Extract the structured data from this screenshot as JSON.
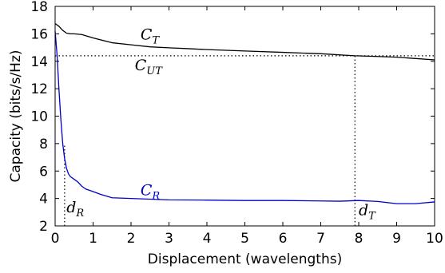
{
  "chart_data": {
    "type": "line",
    "xlabel": "Displacement (wavelengths)",
    "ylabel": "Capacity (bits/s/Hz)",
    "xlim": [
      0,
      10
    ],
    "ylim": [
      2,
      18
    ],
    "xticks": [
      "0",
      "1",
      "2",
      "3",
      "4",
      "5",
      "6",
      "7",
      "8",
      "9",
      "10"
    ],
    "yticks": [
      "2",
      "4",
      "6",
      "8",
      "10",
      "12",
      "14",
      "16",
      "18"
    ],
    "grid": false,
    "series": [
      {
        "name": "C_T",
        "color": "#000000",
        "x": [
          0,
          0.1,
          0.2,
          0.3,
          0.4,
          0.5,
          0.7,
          1,
          1.5,
          2,
          2.5,
          3,
          3.5,
          4,
          5,
          6,
          7,
          7.9,
          8.5,
          9,
          9.5,
          10
        ],
        "y": [
          16.75,
          16.55,
          16.25,
          16.05,
          16.0,
          16.0,
          15.95,
          15.7,
          15.35,
          15.2,
          15.05,
          14.98,
          14.92,
          14.85,
          14.75,
          14.65,
          14.55,
          14.4,
          14.35,
          14.3,
          14.2,
          14.1
        ]
      },
      {
        "name": "C_R",
        "color": "#0000cc",
        "x": [
          0,
          0.05,
          0.1,
          0.15,
          0.2,
          0.25,
          0.3,
          0.35,
          0.4,
          0.5,
          0.6,
          0.7,
          0.8,
          1,
          1.2,
          1.5,
          2,
          2.5,
          3,
          4,
          5,
          6,
          7,
          7.5,
          8,
          8.5,
          9,
          9.5,
          10
        ],
        "y": [
          16.2,
          14.5,
          12.0,
          9.8,
          8.0,
          6.9,
          6.2,
          5.8,
          5.6,
          5.4,
          5.2,
          4.9,
          4.7,
          4.5,
          4.3,
          4.05,
          4.0,
          3.95,
          3.9,
          3.88,
          3.85,
          3.85,
          3.82,
          3.8,
          3.85,
          3.78,
          3.62,
          3.62,
          3.75
        ]
      }
    ],
    "reference_lines": [
      {
        "orientation": "horizontal",
        "y": 14.4,
        "x_from": 0,
        "x_to": 10,
        "style": "dotted",
        "color": "#000000"
      },
      {
        "orientation": "vertical",
        "x": 0.25,
        "y_from": 2,
        "y_to": 8,
        "style": "dotted",
        "color": "#000000"
      },
      {
        "orientation": "vertical",
        "x": 7.9,
        "y_from": 2,
        "y_to": 14.4,
        "style": "dotted",
        "color": "#000000"
      }
    ],
    "annotations": [
      {
        "base": "C",
        "sub": "T",
        "x": 2.25,
        "y": 15.6,
        "color": "#000000"
      },
      {
        "base": "C",
        "sub": "UT",
        "x": 2.1,
        "y": 13.35,
        "color": "#000000"
      },
      {
        "base": "C",
        "sub": "R",
        "x": 2.25,
        "y": 4.25,
        "color": "#0000cc"
      },
      {
        "base": "d",
        "sub": "R",
        "x": 0.3,
        "y": 3.0,
        "color": "#000000"
      },
      {
        "base": "d",
        "sub": "T",
        "x": 8.0,
        "y": 2.8,
        "color": "#000000"
      }
    ]
  }
}
